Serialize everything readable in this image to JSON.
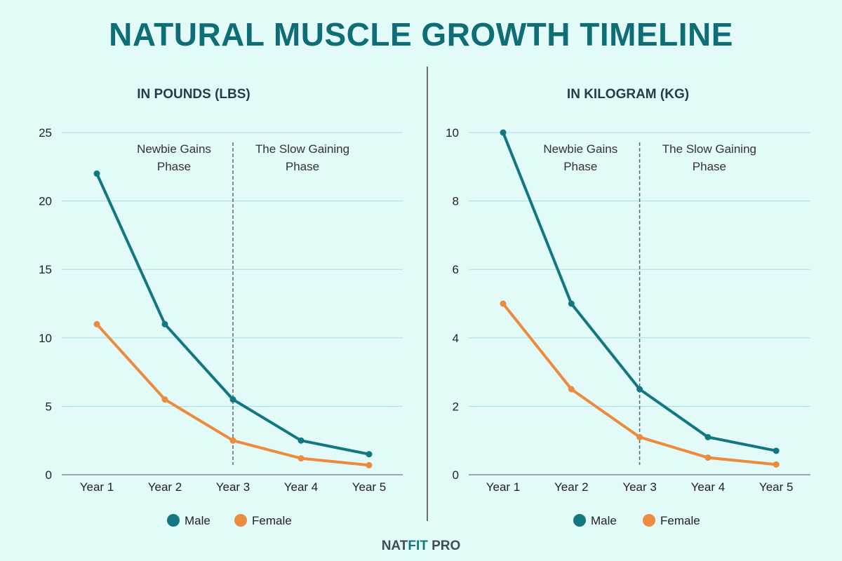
{
  "title": "NATURAL MUSCLE GROWTH TIMELINE",
  "logo": {
    "part1": "NAT",
    "part2": "FIT",
    "part3": " PRO"
  },
  "colors": {
    "male": "#127780",
    "female": "#ec8b3d",
    "title": "#0f6d75",
    "grid": "#a9dde6"
  },
  "chart_data": [
    {
      "type": "line",
      "title": "IN POUNDS (LBS)",
      "categories": [
        "Year 1",
        "Year 2",
        "Year 3",
        "Year 4",
        "Year 5"
      ],
      "ylim": [
        0,
        25
      ],
      "yticks": [
        0,
        5,
        10,
        15,
        20,
        25
      ],
      "grid": true,
      "legend": "bottom",
      "phases": [
        "Newbie Gains\nPhase",
        "The Slow Gaining\nPhase"
      ],
      "phase_divider_at": "Year 3",
      "series": [
        {
          "name": "Male",
          "values": [
            22,
            11,
            5.5,
            2.5,
            1.5
          ]
        },
        {
          "name": "Female",
          "values": [
            11,
            5.5,
            2.5,
            1.2,
            0.7
          ]
        }
      ]
    },
    {
      "type": "line",
      "title": "IN KILOGRAM (KG)",
      "categories": [
        "Year 1",
        "Year 2",
        "Year 3",
        "Year 4",
        "Year 5"
      ],
      "ylim": [
        0,
        10
      ],
      "yticks": [
        0,
        2,
        4,
        6,
        8,
        10
      ],
      "grid": true,
      "legend": "bottom",
      "phases": [
        "Newbie Gains\nPhase",
        "The Slow Gaining\nPhase"
      ],
      "phase_divider_at": "Year 3",
      "series": [
        {
          "name": "Male",
          "values": [
            10,
            5,
            2.5,
            1.1,
            0.7
          ]
        },
        {
          "name": "Female",
          "values": [
            5,
            2.5,
            1.1,
            0.5,
            0.3
          ]
        }
      ]
    }
  ]
}
